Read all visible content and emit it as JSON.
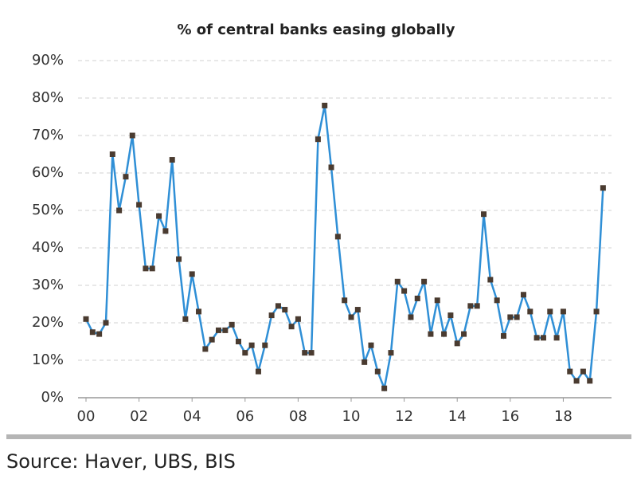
{
  "chart_data": {
    "type": "line",
    "title": "% of central banks easing globally",
    "source": "Source:  Haver, UBS, BIS",
    "x": [
      2000,
      2000.25,
      2000.5,
      2000.75,
      2001,
      2001.25,
      2001.5,
      2001.75,
      2002,
      2002.25,
      2002.5,
      2002.75,
      2003,
      2003.25,
      2003.5,
      2003.75,
      2004,
      2004.25,
      2004.5,
      2004.75,
      2005,
      2005.25,
      2005.5,
      2005.75,
      2006,
      2006.25,
      2006.5,
      2006.75,
      2007,
      2007.25,
      2007.5,
      2007.75,
      2008,
      2008.25,
      2008.5,
      2008.75,
      2009,
      2009.25,
      2009.5,
      2009.75,
      2010,
      2010.25,
      2010.5,
      2010.75,
      2011,
      2011.25,
      2011.5,
      2011.75,
      2012,
      2012.25,
      2012.5,
      2012.75,
      2013,
      2013.25,
      2013.5,
      2013.75,
      2014,
      2014.25,
      2014.5,
      2014.75,
      2015,
      2015.25,
      2015.5,
      2015.75,
      2016,
      2016.25,
      2016.5,
      2016.75,
      2017,
      2017.25,
      2017.5,
      2017.75,
      2018,
      2018.25,
      2018.5,
      2018.75,
      2019,
      2019.25,
      2019.5
    ],
    "series": [
      {
        "name": "% of central banks easing",
        "color": "#2f8fd6",
        "marker_color": "#4a3b30",
        "values": [
          21,
          17.5,
          17,
          20,
          65,
          50,
          59,
          70,
          51.5,
          34.5,
          34.5,
          48.5,
          44.5,
          63.5,
          37,
          21,
          33,
          23,
          13,
          15.5,
          18,
          18,
          19.5,
          15,
          12,
          14,
          7,
          14,
          22,
          24.5,
          23.5,
          19,
          21,
          12,
          12,
          69,
          78,
          61.5,
          43,
          26,
          21.5,
          23.5,
          9.5,
          14,
          7,
          2.5,
          12,
          31,
          28.5,
          21.5,
          26.5,
          31,
          17,
          26,
          17,
          22,
          14.5,
          17,
          24.5,
          24.5,
          49,
          31.5,
          26,
          16.5,
          21.5,
          21.5,
          27.5,
          23,
          16,
          16,
          23,
          16,
          23,
          7,
          4.5,
          7,
          4.5,
          23,
          56
        ]
      }
    ],
    "xlim": [
      2000,
      2019.75
    ],
    "xticks": [
      {
        "value": 2000,
        "label": "00"
      },
      {
        "value": 2002,
        "label": "02"
      },
      {
        "value": 2004,
        "label": "04"
      },
      {
        "value": 2006,
        "label": "06"
      },
      {
        "value": 2008,
        "label": "08"
      },
      {
        "value": 2010,
        "label": "10"
      },
      {
        "value": 2012,
        "label": "12"
      },
      {
        "value": 2014,
        "label": "14"
      },
      {
        "value": 2016,
        "label": "16"
      },
      {
        "value": 2018,
        "label": "18"
      }
    ],
    "ylim": [
      0,
      90
    ],
    "yticks": [
      {
        "value": 0,
        "label": "0%"
      },
      {
        "value": 10,
        "label": "10%"
      },
      {
        "value": 20,
        "label": "20%"
      },
      {
        "value": 30,
        "label": "30%"
      },
      {
        "value": 40,
        "label": "40%"
      },
      {
        "value": 50,
        "label": "50%"
      },
      {
        "value": 60,
        "label": "60%"
      },
      {
        "value": 70,
        "label": "70%"
      },
      {
        "value": 80,
        "label": "80%"
      },
      {
        "value": 90,
        "label": "90%"
      }
    ],
    "grid": true
  }
}
